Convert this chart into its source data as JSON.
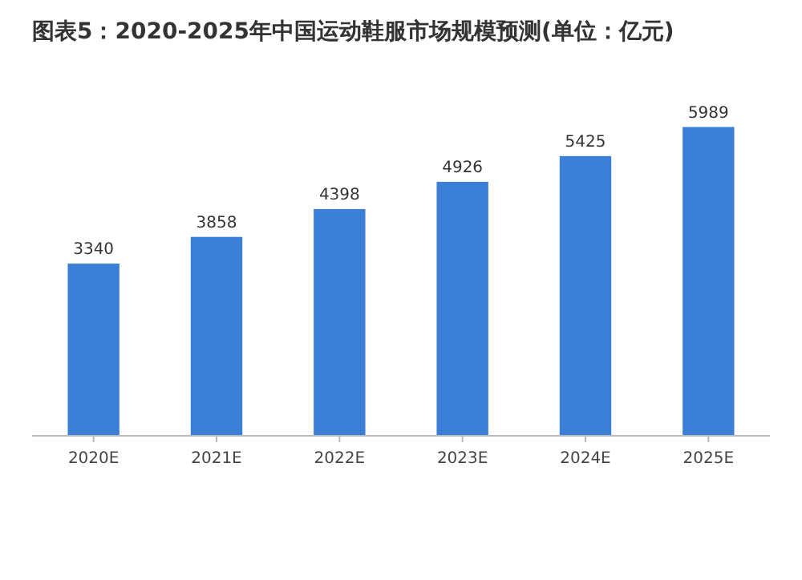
{
  "chart_data": {
    "type": "bar",
    "title": "图表5：2020-2025年中国运动鞋服市场规模预测(单位：亿元)",
    "categories": [
      "2020E",
      "2021E",
      "2022E",
      "2023E",
      "2024E",
      "2025E"
    ],
    "values": [
      3340,
      3858,
      4398,
      4926,
      5425,
      5989
    ],
    "color": "#3b7fd6",
    "data_labels": true
  }
}
